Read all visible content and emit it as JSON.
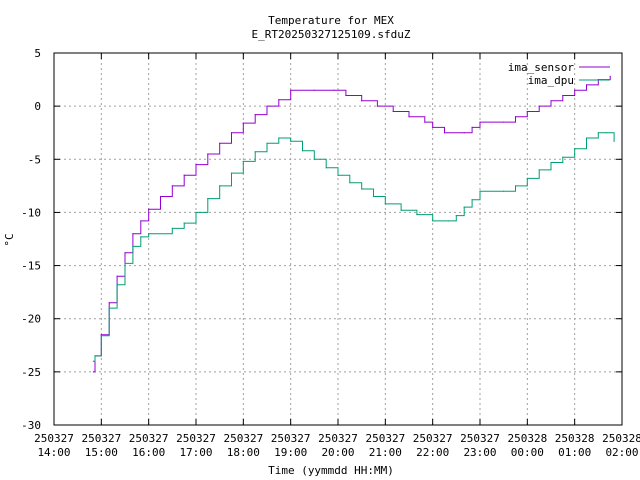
{
  "chart_data": {
    "type": "line",
    "title": "Temperature for MEX",
    "subtitle": "E_RT20250327125109.sfduZ",
    "xlabel": "Time (yymmdd HH:MM)",
    "ylabel": "°C",
    "ylim": [
      -30,
      5
    ],
    "y_ticks": [
      -30,
      -25,
      -20,
      -15,
      -10,
      -5,
      0,
      5
    ],
    "xlim": [
      "250327 14:00",
      "250328 02:00"
    ],
    "x_ticks": [
      {
        "date": "250327",
        "time": "14:00"
      },
      {
        "date": "250327",
        "time": "15:00"
      },
      {
        "date": "250327",
        "time": "16:00"
      },
      {
        "date": "250327",
        "time": "17:00"
      },
      {
        "date": "250327",
        "time": "18:00"
      },
      {
        "date": "250327",
        "time": "19:00"
      },
      {
        "date": "250327",
        "time": "20:00"
      },
      {
        "date": "250327",
        "time": "21:00"
      },
      {
        "date": "250327",
        "time": "22:00"
      },
      {
        "date": "250327",
        "time": "23:00"
      },
      {
        "date": "250328",
        "time": "00:00"
      },
      {
        "date": "250328",
        "time": "01:00"
      },
      {
        "date": "250328",
        "time": "02:00"
      }
    ],
    "grid": true,
    "legend_position": "top-right",
    "series": [
      {
        "name": "ima_sensor",
        "color": "#9400d3",
        "points": [
          [
            "250327 14:50",
            -25.0
          ],
          [
            "250327 14:52",
            -23.5
          ],
          [
            "250327 15:00",
            -21.5
          ],
          [
            "250327 15:10",
            -18.5
          ],
          [
            "250327 15:20",
            -16.0
          ],
          [
            "250327 15:30",
            -13.8
          ],
          [
            "250327 15:40",
            -12.0
          ],
          [
            "250327 15:50",
            -10.8
          ],
          [
            "250327 16:00",
            -9.7
          ],
          [
            "250327 16:15",
            -8.5
          ],
          [
            "250327 16:30",
            -7.5
          ],
          [
            "250327 16:45",
            -6.5
          ],
          [
            "250327 17:00",
            -5.5
          ],
          [
            "250327 17:15",
            -4.5
          ],
          [
            "250327 17:30",
            -3.5
          ],
          [
            "250327 17:45",
            -2.5
          ],
          [
            "250327 18:00",
            -1.6
          ],
          [
            "250327 18:15",
            -0.8
          ],
          [
            "250327 18:30",
            0.0
          ],
          [
            "250327 18:45",
            0.6
          ],
          [
            "250327 19:00",
            1.5
          ],
          [
            "250327 19:30",
            1.5
          ],
          [
            "250327 19:55",
            1.5
          ],
          [
            "250327 20:10",
            1.0
          ],
          [
            "250327 20:30",
            0.5
          ],
          [
            "250327 20:50",
            0.0
          ],
          [
            "250327 21:10",
            -0.5
          ],
          [
            "250327 21:30",
            -1.0
          ],
          [
            "250327 21:50",
            -1.5
          ],
          [
            "250327 22:00",
            -2.0
          ],
          [
            "250327 22:15",
            -2.5
          ],
          [
            "250327 22:40",
            -2.5
          ],
          [
            "250327 22:50",
            -2.0
          ],
          [
            "250327 23:00",
            -1.5
          ],
          [
            "250327 23:30",
            -1.5
          ],
          [
            "250327 23:45",
            -1.0
          ],
          [
            "250328 00:00",
            -0.5
          ],
          [
            "250328 00:15",
            0.0
          ],
          [
            "250328 00:30",
            0.5
          ],
          [
            "250328 00:45",
            1.0
          ],
          [
            "250328 01:00",
            1.5
          ],
          [
            "250328 01:15",
            2.0
          ],
          [
            "250328 01:30",
            2.5
          ],
          [
            "250328 01:45",
            2.8
          ]
        ]
      },
      {
        "name": "ima_dpu",
        "color": "#009e73",
        "points": [
          [
            "250327 14:50",
            -24.0
          ],
          [
            "250327 14:52",
            -23.5
          ],
          [
            "250327 15:00",
            -21.6
          ],
          [
            "250327 15:10",
            -19.0
          ],
          [
            "250327 15:20",
            -16.8
          ],
          [
            "250327 15:30",
            -14.8
          ],
          [
            "250327 15:40",
            -13.2
          ],
          [
            "250327 15:50",
            -12.3
          ],
          [
            "250327 16:00",
            -12.0
          ],
          [
            "250327 16:30",
            -11.5
          ],
          [
            "250327 16:45",
            -11.0
          ],
          [
            "250327 17:00",
            -10.0
          ],
          [
            "250327 17:15",
            -8.7
          ],
          [
            "250327 17:30",
            -7.5
          ],
          [
            "250327 17:45",
            -6.3
          ],
          [
            "250327 18:00",
            -5.2
          ],
          [
            "250327 18:15",
            -4.3
          ],
          [
            "250327 18:30",
            -3.5
          ],
          [
            "250327 18:45",
            -3.0
          ],
          [
            "250327 19:00",
            -3.3
          ],
          [
            "250327 19:15",
            -4.2
          ],
          [
            "250327 19:30",
            -5.0
          ],
          [
            "250327 19:45",
            -5.8
          ],
          [
            "250327 20:00",
            -6.5
          ],
          [
            "250327 20:15",
            -7.2
          ],
          [
            "250327 20:30",
            -7.8
          ],
          [
            "250327 20:45",
            -8.5
          ],
          [
            "250327 21:00",
            -9.2
          ],
          [
            "250327 21:20",
            -9.8
          ],
          [
            "250327 21:40",
            -10.2
          ],
          [
            "250327 22:00",
            -10.8
          ],
          [
            "250327 22:20",
            -10.8
          ],
          [
            "250327 22:30",
            -10.3
          ],
          [
            "250327 22:40",
            -9.5
          ],
          [
            "250327 22:50",
            -8.8
          ],
          [
            "250327 23:00",
            -8.0
          ],
          [
            "250327 23:30",
            -8.0
          ],
          [
            "250327 23:45",
            -7.5
          ],
          [
            "250328 00:00",
            -6.8
          ],
          [
            "250328 00:15",
            -6.0
          ],
          [
            "250328 00:30",
            -5.3
          ],
          [
            "250328 00:45",
            -4.8
          ],
          [
            "250328 01:00",
            -4.0
          ],
          [
            "250328 01:15",
            -3.0
          ],
          [
            "250328 01:30",
            -2.5
          ],
          [
            "250328 01:40",
            -2.5
          ],
          [
            "250328 01:50",
            -3.3
          ]
        ]
      }
    ]
  }
}
